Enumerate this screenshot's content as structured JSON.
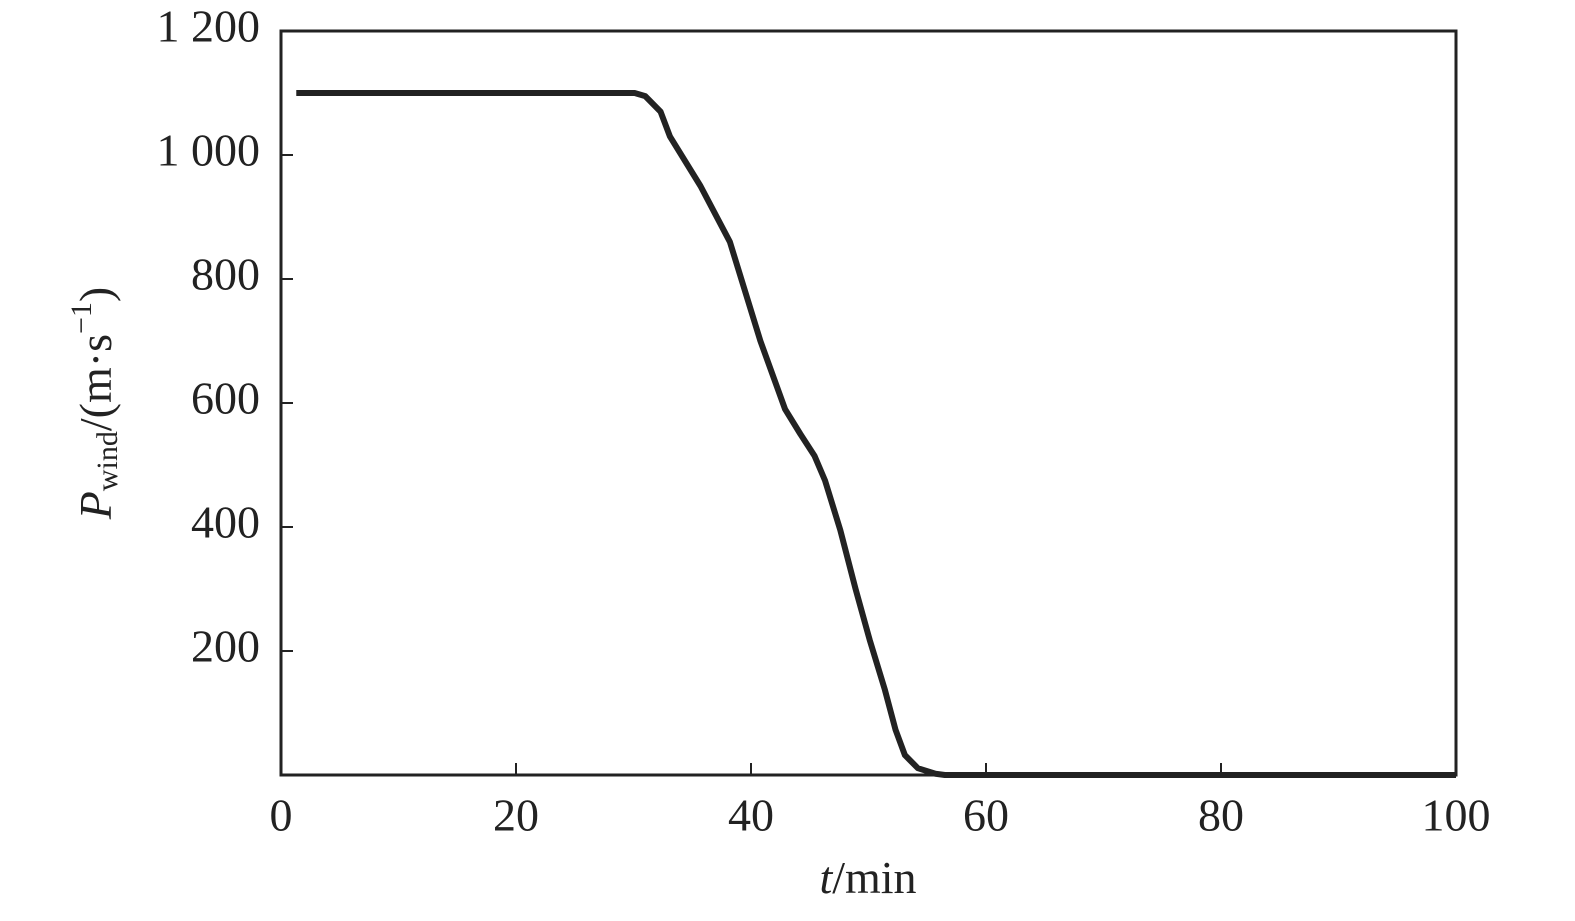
{
  "chart_data": {
    "type": "line",
    "x_label": {
      "symbol": "t",
      "unit": "/min"
    },
    "y_label": {
      "symbol": "P",
      "subscript": "wind",
      "unit": "/(m·s",
      "superscript": "−1",
      "close": ")"
    },
    "x": [
      1.3,
      10,
      20,
      30.1,
      31,
      32.3,
      33.1,
      35.7,
      38.2,
      40.8,
      42.9,
      44.2,
      45.4,
      46.3,
      47.6,
      48.9,
      50.1,
      51.4,
      52.3,
      53.1,
      54.2,
      55.7,
      56.5,
      70,
      100
    ],
    "series": [
      {
        "color": "#222222",
        "values": [
          1100,
          1100,
          1100,
          1100,
          1095,
          1070,
          1030,
          950,
          860,
          700,
          590,
          550,
          515,
          475,
          395,
          300,
          218,
          137,
          73,
          32,
          11,
          2,
          0,
          0,
          0
        ]
      }
    ],
    "xlim": [
      0,
      100
    ],
    "xticks": [
      0,
      20,
      40,
      60,
      80,
      100
    ],
    "ylim": [
      0,
      1200
    ],
    "yticks": [
      200,
      400,
      600,
      800,
      {
        "value": 1000,
        "label": "1 000"
      },
      {
        "value": 1200,
        "label": "1 200"
      }
    ]
  }
}
